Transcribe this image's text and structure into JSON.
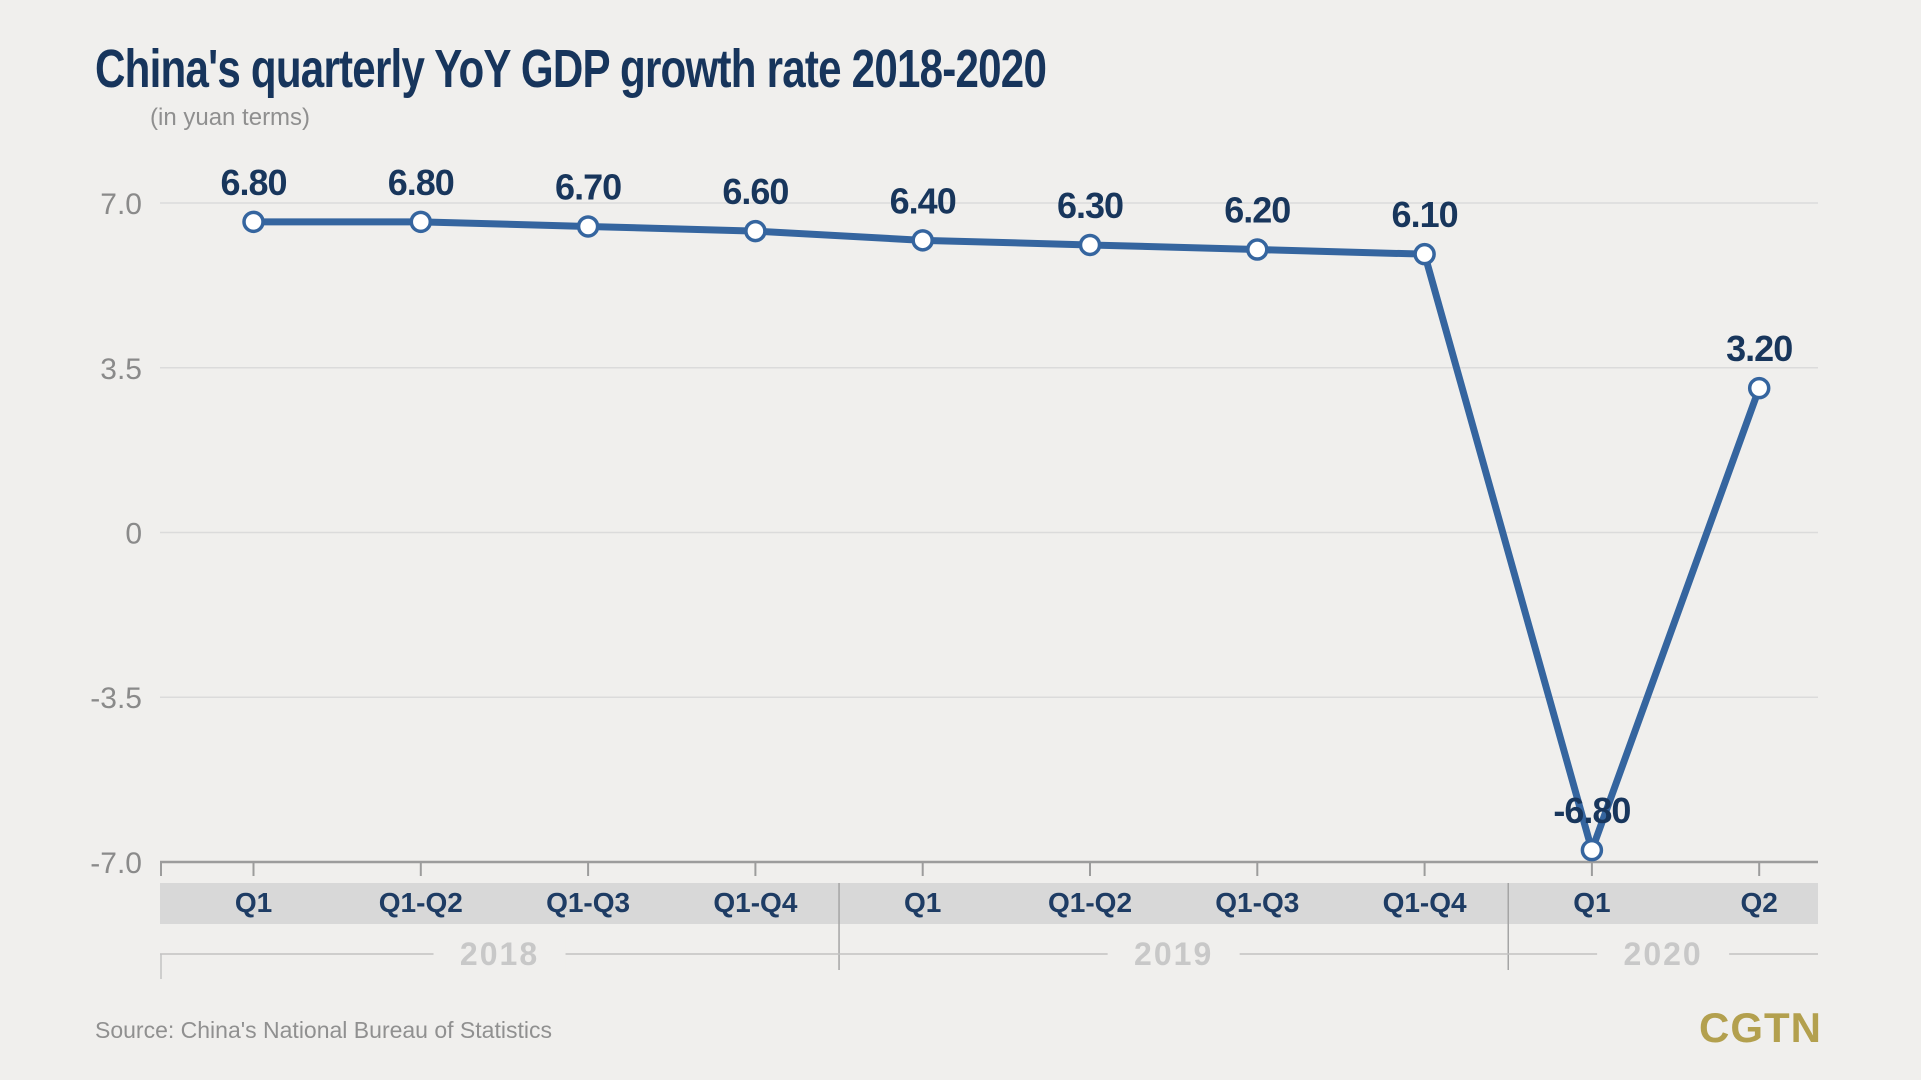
{
  "title": "China's quarterly YoY GDP growth rate 2018-2020",
  "subtitle": "(in yuan terms)",
  "source": "Source: China's National Bureau of Statistics",
  "logo": "CGTN",
  "colors": {
    "background": "#f0efed",
    "title": "#17355c",
    "subtitle": "#8f8f8f",
    "line": "#35659f",
    "marker_fill": "#ffffff",
    "value_label": "#18365c",
    "grid": "#dbdbdb",
    "axis": "#9c9c9c",
    "y_label": "#8a8a8a",
    "band": "#d8d8d8",
    "band_label": "#1e3c64",
    "separator": "#a5a5a5",
    "bracket": "#c2c2c2",
    "year_label": "#c8c8c8",
    "source": "#909090",
    "logo": "#b3a04e"
  },
  "chart_data": {
    "type": "line",
    "title": "China's quarterly YoY GDP growth rate 2018-2020",
    "subtitle": "(in yuan terms)",
    "categories": [
      "Q1",
      "Q1-Q2",
      "Q1-Q3",
      "Q1-Q4",
      "Q1",
      "Q1-Q2",
      "Q1-Q3",
      "Q1-Q4",
      "Q1",
      "Q2"
    ],
    "values": [
      6.8,
      6.8,
      6.7,
      6.6,
      6.4,
      6.3,
      6.2,
      6.1,
      -6.8,
      3.2
    ],
    "value_labels": [
      "6.80",
      "6.80",
      "6.70",
      "6.60",
      "6.40",
      "6.30",
      "6.20",
      "6.10",
      "-6.80",
      "3.20"
    ],
    "groups": [
      {
        "label": "2018",
        "span": 4
      },
      {
        "label": "2019",
        "span": 4
      },
      {
        "label": "2020",
        "span": 2
      }
    ],
    "y_ticks": [
      "7.0",
      "3.5",
      "0",
      "-3.5",
      "-7.0"
    ],
    "y_tick_values": [
      7,
      3.5,
      0,
      -3.5,
      -7
    ],
    "ylim": [
      -7,
      7
    ],
    "grid": true,
    "legend": "none",
    "xlabel": "",
    "ylabel": ""
  }
}
